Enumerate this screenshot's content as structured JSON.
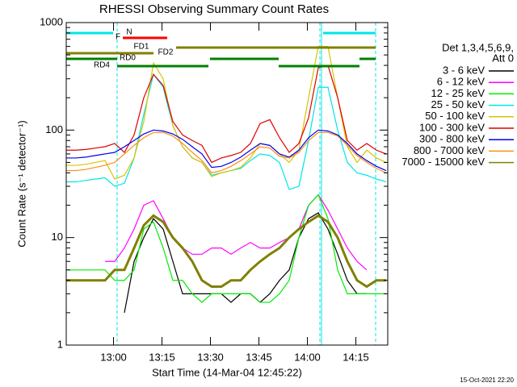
{
  "chart_data": {
    "type": "line",
    "title": "RHESSI Observing Summary Count Rates",
    "x_label": "Start Time (14-Mar-04 12:45:22)",
    "y_label": "Count Rate (s⁻¹ detector⁻¹)",
    "legend_header": [
      "Det 1,3,4,5,6,9,",
      "Att 0"
    ],
    "footer": "15-Oct-2021 22:20",
    "log_y": true,
    "xlim": [
      0,
      99.5
    ],
    "ylim": [
      1,
      1000
    ],
    "yticks": [
      1,
      10,
      100,
      1000
    ],
    "xticks": [
      {
        "value": 14.633,
        "label": "13:00"
      },
      {
        "value": 29.633,
        "label": "13:15"
      },
      {
        "value": 44.633,
        "label": "13:30"
      },
      {
        "value": 59.633,
        "label": "13:45"
      },
      {
        "value": 74.633,
        "label": "14:00"
      },
      {
        "value": 89.633,
        "label": "14:15"
      }
    ],
    "x": [
      0,
      3,
      6,
      9,
      12,
      15,
      18,
      21,
      24,
      27,
      30,
      33,
      36,
      39,
      42,
      45,
      48,
      51,
      54,
      57,
      60,
      63,
      66,
      69,
      72,
      75,
      78,
      81,
      84,
      87,
      90,
      93,
      96,
      99
    ],
    "series": [
      {
        "name": "3 - 6 keV",
        "color": "#000000",
        "values": [
          null,
          null,
          null,
          null,
          null,
          null,
          2,
          6,
          10,
          15,
          12,
          6,
          3,
          3,
          3,
          3,
          3,
          2.5,
          3,
          3,
          2.5,
          3,
          4,
          5,
          10,
          15,
          17,
          12,
          7,
          4,
          3,
          3,
          null,
          null
        ]
      },
      {
        "name": "6 - 12 keV",
        "color": "#ff00ff",
        "values": [
          null,
          null,
          null,
          null,
          6,
          6,
          8,
          12,
          20,
          22,
          15,
          10,
          8,
          7,
          7,
          8,
          8,
          7,
          8,
          9,
          8,
          8,
          9,
          10,
          12,
          20,
          25,
          18,
          12,
          8,
          6,
          5,
          null,
          null
        ]
      },
      {
        "name": "12 - 25 keV",
        "color": "#00ee00",
        "values": [
          5,
          5,
          5,
          5,
          5,
          4,
          4,
          5,
          12,
          14,
          8,
          4,
          4,
          3,
          2.5,
          3,
          3,
          3,
          3,
          3,
          2.5,
          2.5,
          3,
          4,
          10,
          20,
          25,
          15,
          5,
          3,
          3,
          3,
          3,
          3
        ]
      },
      {
        "name": "25 - 50 keV",
        "color": "#00e5e5",
        "values": [
          33,
          33,
          34,
          35,
          36,
          30,
          32,
          55,
          140,
          330,
          250,
          110,
          70,
          55,
          50,
          38,
          40,
          42,
          44,
          52,
          60,
          58,
          50,
          28,
          30,
          80,
          250,
          250,
          100,
          50,
          40,
          38,
          35,
          33
        ]
      },
      {
        "name": "50 - 100 keV",
        "color": "#d8c400",
        "values": [
          47,
          47,
          48,
          50,
          52,
          35,
          38,
          55,
          120,
          420,
          300,
          110,
          70,
          55,
          50,
          37,
          40,
          42,
          45,
          55,
          75,
          72,
          60,
          50,
          65,
          200,
          600,
          600,
          200,
          70,
          50,
          65,
          55,
          50
        ]
      },
      {
        "name": "100 - 300 keV",
        "color": "#e00000",
        "values": [
          65,
          65,
          66,
          68,
          70,
          75,
          62,
          90,
          200,
          330,
          260,
          120,
          90,
          80,
          72,
          50,
          55,
          58,
          62,
          75,
          115,
          125,
          85,
          62,
          75,
          130,
          380,
          400,
          200,
          80,
          65,
          75,
          65,
          60
        ]
      },
      {
        "name": "300 - 800 keV",
        "color": "#0000ee",
        "values": [
          55,
          55,
          56,
          58,
          60,
          62,
          70,
          80,
          92,
          100,
          98,
          92,
          82,
          70,
          60,
          45,
          46,
          50,
          56,
          65,
          75,
          72,
          60,
          56,
          65,
          85,
          100,
          98,
          90,
          75,
          60,
          52,
          46,
          42
        ]
      },
      {
        "name": "800 - 7000 keV",
        "color": "#ff8c1a",
        "values": [
          42,
          42,
          43,
          45,
          47,
          50,
          60,
          72,
          85,
          95,
          95,
          88,
          75,
          62,
          52,
          40,
          42,
          46,
          52,
          60,
          70,
          68,
          57,
          55,
          62,
          80,
          95,
          95,
          88,
          72,
          58,
          50,
          44,
          40
        ]
      },
      {
        "name": "7000 - 15000 keV",
        "color": "#808000",
        "values": [
          4,
          4,
          4,
          4,
          4,
          5,
          5,
          8,
          13,
          16,
          14,
          10,
          8,
          6,
          4,
          3.5,
          3.5,
          4,
          4,
          5,
          6,
          7,
          8,
          10,
          12,
          14,
          16,
          14,
          10,
          6,
          4,
          3.5,
          4,
          4
        ]
      }
    ],
    "vlines": [
      {
        "x": 0,
        "dashed": false
      },
      {
        "x": 15.75,
        "dashed": true
      },
      {
        "x": 78.5,
        "dashed": true
      },
      {
        "x": 79,
        "dashed": false
      },
      {
        "x": 95.75,
        "dashed": true
      }
    ],
    "vline_color": "#00e5e5",
    "flags": [
      {
        "label": "N",
        "color": "#00e5e5",
        "segments": [
          [
            0,
            14.5
          ],
          [
            79.5,
            95.75
          ]
        ]
      },
      {
        "label": "F",
        "color": "#ff0000",
        "segments": [
          [
            17.5,
            31.25
          ]
        ]
      },
      {
        "label": "FD1",
        "color": "#808000",
        "segments": [
          [
            34,
            95.75
          ]
        ]
      },
      {
        "label": "FD2",
        "color": "#808000",
        "segments": [
          [
            0,
            27
          ]
        ]
      },
      {
        "label": "RD0",
        "color": "#008000",
        "segments": [
          [
            0,
            15.75
          ],
          [
            44.5,
            65.75
          ],
          [
            90.75,
            95.75
          ]
        ]
      },
      {
        "label": "RD4",
        "color": "#008000",
        "segments": [
          [
            15.75,
            44
          ],
          [
            65.75,
            90.75
          ]
        ]
      }
    ]
  }
}
